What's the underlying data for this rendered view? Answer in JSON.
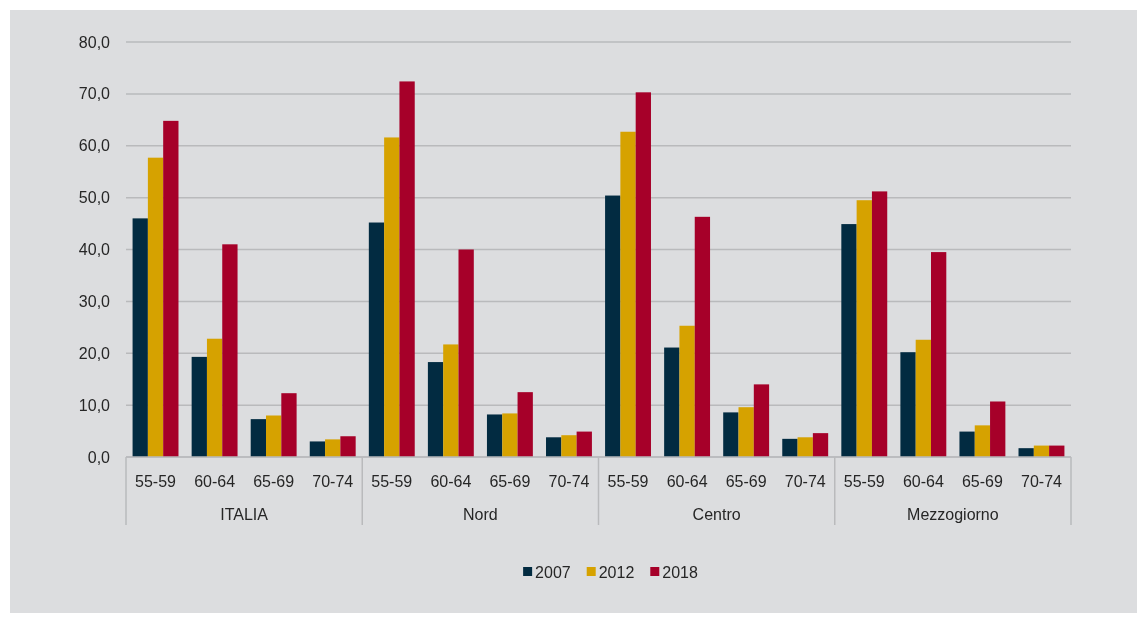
{
  "chart_data": {
    "type": "bar",
    "categories": [
      "55-59",
      "60-64",
      "65-69",
      "70-74",
      "55-59",
      "60-64",
      "65-69",
      "70-74",
      "55-59",
      "60-64",
      "65-69",
      "70-74",
      "55-59",
      "60-64",
      "65-69",
      "70-74"
    ],
    "annotations": [
      "ITALIA",
      "Nord",
      "Centro",
      "Mezzogiorno"
    ],
    "series": [
      {
        "name": "2007",
        "color": "#022b41",
        "values": [
          46.0,
          19.3,
          7.3,
          3.0,
          45.2,
          18.3,
          8.2,
          3.8,
          50.4,
          21.1,
          8.6,
          3.5,
          44.9,
          20.2,
          4.9,
          1.7
        ]
      },
      {
        "name": "2012",
        "color": "#d6a200",
        "values": [
          57.7,
          22.8,
          8.0,
          3.4,
          61.6,
          21.7,
          8.4,
          4.2,
          62.7,
          25.3,
          9.6,
          3.8,
          49.5,
          22.6,
          6.1,
          2.2
        ]
      },
      {
        "name": "2018",
        "color": "#a60029",
        "values": [
          64.8,
          41.0,
          12.3,
          4.0,
          72.4,
          40.0,
          12.5,
          4.9,
          70.3,
          46.3,
          14.0,
          4.6,
          51.2,
          39.5,
          10.7,
          2.2
        ]
      }
    ],
    "ylim": [
      0,
      80
    ],
    "yticks": [
      {
        "value": 0,
        "label": "0,0"
      },
      {
        "value": 10,
        "label": "10,0"
      },
      {
        "value": 20,
        "label": "20,0"
      },
      {
        "value": 30,
        "label": "30,0"
      },
      {
        "value": 40,
        "label": "40,0"
      },
      {
        "value": 50,
        "label": "50,0"
      },
      {
        "value": 60,
        "label": "60,0"
      },
      {
        "value": 70,
        "label": "70,0"
      },
      {
        "value": 80,
        "label": "80,0"
      }
    ],
    "grid": "y",
    "legend": "bottom"
  }
}
